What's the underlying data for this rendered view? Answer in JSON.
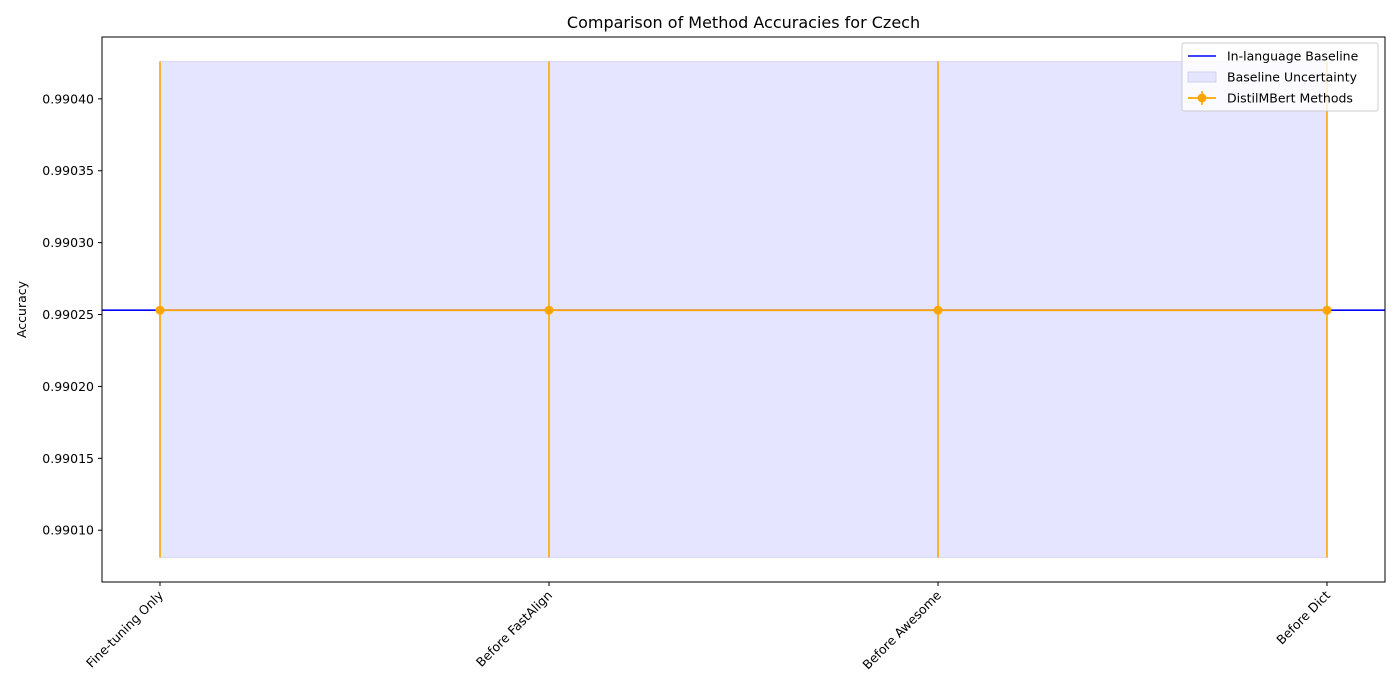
{
  "chart_data": {
    "type": "line",
    "title": "Comparison of Method Accuracies for Czech",
    "xlabel": "",
    "ylabel": "Accuracy",
    "categories": [
      "Fine-tuning Only",
      "Before FastAlign",
      "Before Awesome",
      "Before Dict"
    ],
    "ylim": [
      0.990064,
      0.990443
    ],
    "yticks": [
      0.9901,
      0.99015,
      0.9902,
      0.99025,
      0.9903,
      0.99035,
      0.9904
    ],
    "ytick_labels": [
      "0.99010",
      "0.99015",
      "0.99020",
      "0.99025",
      "0.99030",
      "0.99035",
      "0.99040"
    ],
    "grid": false,
    "legend_position": "upper-right",
    "baseline": {
      "name": "In-language Baseline",
      "value": 0.990253,
      "color": "#0000ff"
    },
    "uncertainty": {
      "name": "Baseline Uncertainty",
      "lower": 0.990081,
      "upper": 0.990426,
      "color": "#e5e5ff"
    },
    "series": [
      {
        "name": "DistilMBert Methods",
        "color": "#ffa500",
        "values": [
          0.990253,
          0.990253,
          0.990253,
          0.990253
        ],
        "error_lower": [
          0.990081,
          0.990081,
          0.990081,
          0.990081
        ],
        "error_upper": [
          0.990426,
          0.990426,
          0.990426,
          0.990426
        ]
      }
    ]
  }
}
